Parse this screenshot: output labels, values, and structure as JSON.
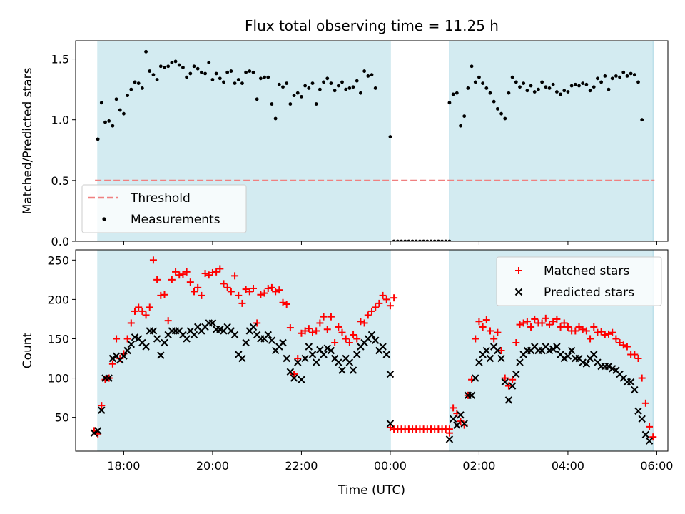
{
  "chart_data": {
    "title": "Flux total observing time = 11.25 h",
    "x_axis": {
      "label": "Time (UTC)",
      "type": "time",
      "range": [
        "2024-01-01T16:55",
        "2024-01-02T06:15"
      ],
      "ticks": [
        {
          "t": "2024-01-01T18:00",
          "label": "18:00"
        },
        {
          "t": "2024-01-01T20:00",
          "label": "20:00"
        },
        {
          "t": "2024-01-01T22:00",
          "label": "22:00"
        },
        {
          "t": "2024-01-02T00:00",
          "label": "00:00"
        },
        {
          "t": "2024-01-02T02:00",
          "label": "02:00"
        },
        {
          "t": "2024-01-02T04:00",
          "label": "04:00"
        },
        {
          "t": "2024-01-02T06:00",
          "label": "06:00"
        }
      ]
    },
    "observing_windows": {
      "color": "#d3ebf1",
      "edge_color": "#a9d6e3",
      "ranges": [
        [
          "2024-01-01T17:25",
          "2024-01-02T00:00"
        ],
        [
          "2024-01-02T01:20",
          "2024-01-02T05:55"
        ]
      ]
    },
    "charts": [
      {
        "type": "scatter",
        "ylabel": "Matched/Predicted stars",
        "ylim": [
          0,
          1.65
        ],
        "yticks": [
          {
            "v": 0,
            "label": "0.0"
          },
          {
            "v": 0.5,
            "label": "0.5"
          },
          {
            "v": 1,
            "label": "1.0"
          },
          {
            "v": 1.5,
            "label": "1.5"
          }
        ],
        "legend": {
          "position": "lower-left"
        },
        "threshold": {
          "name": "Threshold",
          "value": 0.5,
          "color": "#f08080"
        },
        "series": [
          {
            "name": "Measurements",
            "color": "#000000",
            "marker": "dot",
            "groups": [
              {
                "start": "2024-01-01T17:25",
                "step_min": 5,
                "values": [
                  0.84,
                  1.14,
                  0.98,
                  0.99,
                  0.95,
                  1.17,
                  1.08,
                  1.05,
                  1.2,
                  1.25,
                  1.31,
                  1.3,
                  1.26,
                  1.56,
                  1.4,
                  1.37,
                  1.33,
                  1.44,
                  1.43,
                  1.44,
                  1.47,
                  1.48,
                  1.45,
                  1.43,
                  1.35,
                  1.38,
                  1.44,
                  1.42,
                  1.39,
                  1.38,
                  1.47,
                  1.33,
                  1.38,
                  1.34,
                  1.31,
                  1.39,
                  1.4,
                  1.3,
                  1.33,
                  1.3,
                  1.39,
                  1.4,
                  1.39,
                  1.17,
                  1.34,
                  1.35,
                  1.35,
                  1.13,
                  1.01,
                  1.29,
                  1.27,
                  1.3,
                  1.13,
                  1.2,
                  1.22,
                  1.19,
                  1.28,
                  1.26,
                  1.3,
                  1.13,
                  1.25,
                  1.31,
                  1.34,
                  1.3,
                  1.24,
                  1.28,
                  1.31,
                  1.25,
                  1.26,
                  1.27,
                  1.32,
                  1.22,
                  1.4,
                  1.36,
                  1.37,
                  1.26
                ]
              },
              {
                "start": "2024-01-02T00:00",
                "step_min": 5,
                "values": [
                  0.86,
                  0,
                  0,
                  0,
                  0,
                  0,
                  0,
                  0,
                  0,
                  0,
                  0,
                  0,
                  0,
                  0,
                  0,
                  0,
                  0
                ]
              },
              {
                "start": "2024-01-02T01:20",
                "step_min": 5,
                "values": [
                  1.14,
                  1.21,
                  1.22,
                  0.95,
                  1.03,
                  1.26,
                  1.44,
                  1.31,
                  1.35,
                  1.3,
                  1.26,
                  1.22,
                  1.15,
                  1.09,
                  1.05,
                  1.01,
                  1.22,
                  1.35,
                  1.31,
                  1.27,
                  1.3,
                  1.24,
                  1.28,
                  1.23,
                  1.25,
                  1.31,
                  1.27,
                  1.26,
                  1.29,
                  1.23,
                  1.21,
                  1.24,
                  1.23,
                  1.28,
                  1.29,
                  1.28,
                  1.3,
                  1.29,
                  1.24,
                  1.27,
                  1.34,
                  1.31,
                  1.36,
                  1.25,
                  1.34,
                  1.36,
                  1.35,
                  1.39,
                  1.36,
                  1.38,
                  1.37,
                  1.31,
                  1.0
                ]
              }
            ]
          }
        ]
      },
      {
        "type": "scatter",
        "ylabel": "Count",
        "ylim": [
          7,
          263
        ],
        "yticks": [
          {
            "v": 50,
            "label": "50"
          },
          {
            "v": 100,
            "label": "100"
          },
          {
            "v": 150,
            "label": "150"
          },
          {
            "v": 200,
            "label": "200"
          },
          {
            "v": 250,
            "label": "250"
          }
        ],
        "legend": {
          "position": "upper-right"
        },
        "series": [
          {
            "name": "Matched stars",
            "color": "#ff0000",
            "marker": "plus",
            "groups": [
              {
                "start": "2024-01-01T17:20",
                "step_min": 5,
                "values": [
                  33,
                  29,
                  65,
                  98,
                  100,
                  118,
                  150,
                  125,
                  131,
                  150,
                  170,
                  185,
                  190,
                  185,
                  180,
                  190,
                  250,
                  225,
                  205,
                  206,
                  173,
                  225,
                  235,
                  231,
                  232,
                  235,
                  222,
                  210,
                  215,
                  205,
                  233,
                  231,
                  234,
                  235,
                  239,
                  220,
                  215,
                  210,
                  230,
                  205,
                  195,
                  213,
                  210,
                  214,
                  170,
                  206,
                  208,
                  214,
                  215,
                  210,
                  212,
                  196,
                  194,
                  164,
                  105,
                  125,
                  157,
                  160,
                  163,
                  158,
                  160,
                  170,
                  178,
                  162,
                  178,
                  145,
                  165,
                  158,
                  150,
                  145,
                  155,
                  150,
                  172,
                  170,
                  180,
                  185,
                  190,
                  195,
                  205,
                  200,
                  192,
                  202
                ]
              },
              {
                "start": "2024-01-02T00:00",
                "step_min": 5,
                "values": [
                  37,
                  35,
                  35,
                  35,
                  35,
                  35,
                  35,
                  35,
                  35,
                  35,
                  35,
                  35,
                  35,
                  35,
                  35,
                  35,
                  35
                ]
              },
              {
                "start": "2024-01-02T01:20",
                "step_min": 5,
                "values": [
                  30,
                  62,
                  55,
                  45,
                  40,
                  78,
                  98,
                  150,
                  172,
                  165,
                  174,
                  160,
                  150,
                  158,
                  135,
                  100,
                  90,
                  98,
                  145,
                  168,
                  170,
                  172,
                  165,
                  175,
                  170,
                  170,
                  176,
                  168,
                  172,
                  175,
                  165,
                  170,
                  165,
                  160,
                  160,
                  165,
                  162,
                  160,
                  150,
                  165,
                  158,
                  159,
                  155,
                  156,
                  158,
                  150,
                  145,
                  142,
                  140,
                  130,
                  130,
                  125,
                  100,
                  68,
                  38,
                  25
                ]
              }
            ]
          },
          {
            "name": "Predicted stars",
            "color": "#000000",
            "marker": "x",
            "groups": [
              {
                "start": "2024-01-01T17:20",
                "step_min": 5,
                "values": [
                  30,
                  33,
                  59,
                  100,
                  100,
                  125,
                  128,
                  123,
                  128,
                  135,
                  143,
                  152,
                  150,
                  145,
                  140,
                  160,
                  160,
                  150,
                  129,
                  145,
                  155,
                  160,
                  160,
                  160,
                  155,
                  150,
                  160,
                  155,
                  165,
                  160,
                  165,
                  170,
                  170,
                  162,
                  162,
                  160,
                  165,
                  160,
                  155,
                  130,
                  125,
                  145,
                  160,
                  165,
                  155,
                  150,
                  150,
                  155,
                  148,
                  135,
                  140,
                  145,
                  125,
                  108,
                  100,
                  120,
                  98,
                  125,
                  140,
                  130,
                  120,
                  136,
                  130,
                  138,
                  135,
                  125,
                  120,
                  110,
                  125,
                  120,
                  110,
                  130,
                  140,
                  145,
                  150,
                  155,
                  148,
                  135,
                  140,
                  130,
                  105
                ]
              },
              {
                "start": "2024-01-02T00:00",
                "step_min": 5,
                "values": [
                  42
                ]
              },
              {
                "start": "2024-01-02T01:20",
                "step_min": 5,
                "values": [
                  22,
                  48,
                  40,
                  53,
                  42,
                  78,
                  78,
                  100,
                  120,
                  130,
                  135,
                  125,
                  140,
                  135,
                  125,
                  95,
                  72,
                  90,
                  105,
                  120,
                  130,
                  135,
                  135,
                  140,
                  135,
                  135,
                  140,
                  135,
                  137,
                  140,
                  130,
                  125,
                  128,
                  135,
                  125,
                  125,
                  120,
                  118,
                  125,
                  130,
                  120,
                  115,
                  115,
                  115,
                  112,
                  110,
                  105,
                  100,
                  95,
                  95,
                  85,
                  58,
                  48,
                  28,
                  20
                ]
              }
            ]
          }
        ]
      }
    ]
  }
}
